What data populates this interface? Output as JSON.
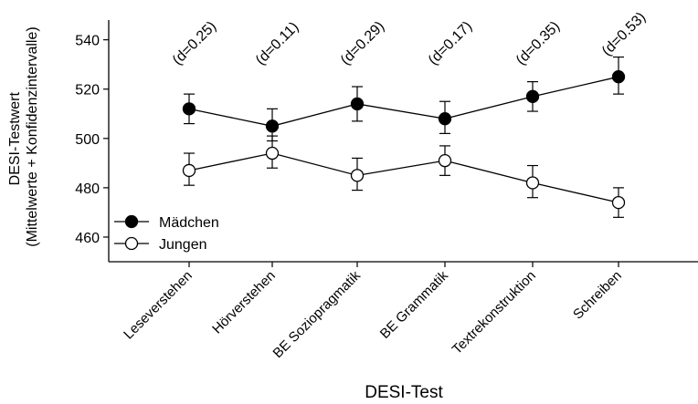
{
  "chart_data": {
    "type": "line",
    "xlabel": "DESI-Test",
    "ylabel_line1": "DESI-Testwert",
    "ylabel_line2": "(Mittelwerte + Konfidenzintervalle)",
    "ylim": [
      450,
      548
    ],
    "yticks": [
      460,
      480,
      500,
      520,
      540
    ],
    "grid": false,
    "legend_position": "bottom-left",
    "categories": [
      "Leseverstehen",
      "Hörverstehen",
      "BE Soziopragmatik",
      "BE Grammatik",
      "Textrekonstruktion",
      "Schreiben"
    ],
    "annotations": [
      "(d=0.25)",
      "(d=0.11)",
      "(d=0.29)",
      "(d=0.17)",
      "(d=0.35)",
      "(d=0.53)"
    ],
    "series": [
      {
        "name": "Mädchen",
        "marker": "filled-circle",
        "color": "#000000",
        "values": [
          512,
          505,
          514,
          508,
          517,
          525
        ],
        "ci_low": [
          506,
          499,
          507,
          502,
          511,
          518
        ],
        "ci_high": [
          518,
          512,
          521,
          515,
          523,
          533
        ]
      },
      {
        "name": "Jungen",
        "marker": "open-circle",
        "color": "#000000",
        "values": [
          487,
          494,
          485,
          491,
          482,
          474
        ],
        "ci_low": [
          481,
          488,
          479,
          485,
          476,
          468
        ],
        "ci_high": [
          494,
          501,
          492,
          497,
          489,
          480
        ]
      }
    ]
  }
}
